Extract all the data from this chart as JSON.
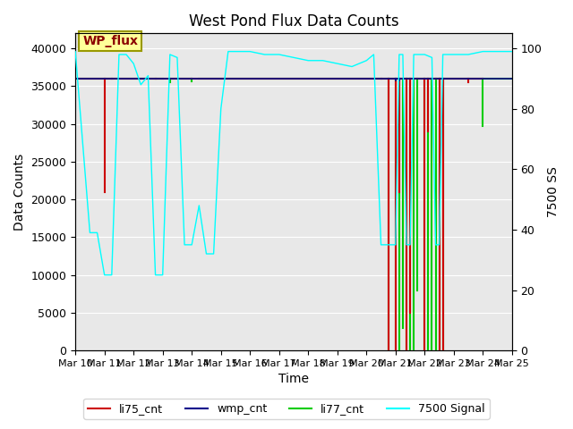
{
  "title": "West Pond Flux Data Counts",
  "xlabel": "Time",
  "ylabel_left": "Data Counts",
  "ylabel_right": "7500 SS",
  "ylim_left": [
    0,
    42000
  ],
  "ylim_right": [
    0,
    105
  ],
  "bg_color": "#e8e8e8",
  "legend_labels": [
    "li75_cnt",
    "wmp_cnt",
    "li77_cnt",
    "7500 Signal"
  ],
  "legend_colors": [
    "#cc0000",
    "#00008b",
    "#00cc00",
    "#00cccc"
  ],
  "annotation_text": "WP_flux",
  "annotation_bg": "#ffff99",
  "annotation_border": "#999900"
}
